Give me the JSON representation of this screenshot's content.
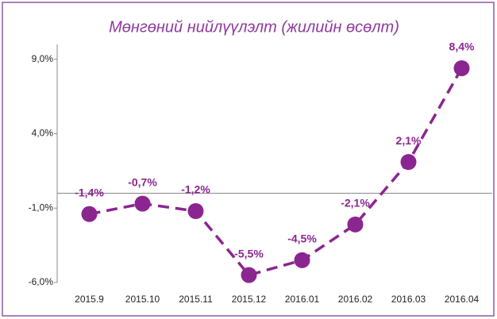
{
  "chart_data": {
    "type": "line",
    "title": "Мөнгөний нийлүүлэлт  (жилийн өсөлт)",
    "categories": [
      "2015.9",
      "2015.10",
      "2015.11",
      "2015.12",
      "2016.01",
      "2016.02",
      "2016.03",
      "2016.04"
    ],
    "series": [
      {
        "name": "Мөнгөний нийлүүлэлт",
        "color": "#8b2590",
        "values": [
          -1.4,
          -0.7,
          -1.2,
          -5.5,
          -4.5,
          -2.1,
          2.1,
          8.4
        ],
        "value_labels": [
          "-1,4%",
          "-0,7%",
          "-1,2%",
          "-5,5%",
          "-4,5%",
          "-2,1%",
          "2,1%",
          "8,4%"
        ]
      }
    ],
    "ylim": [
      -6,
      10
    ],
    "yticks": [
      {
        "value": -6,
        "label": "-6,0%"
      },
      {
        "value": -1,
        "label": "-1,0%"
      },
      {
        "value": 4,
        "label": "4,0%"
      },
      {
        "value": 9,
        "label": "9,0%"
      }
    ]
  }
}
